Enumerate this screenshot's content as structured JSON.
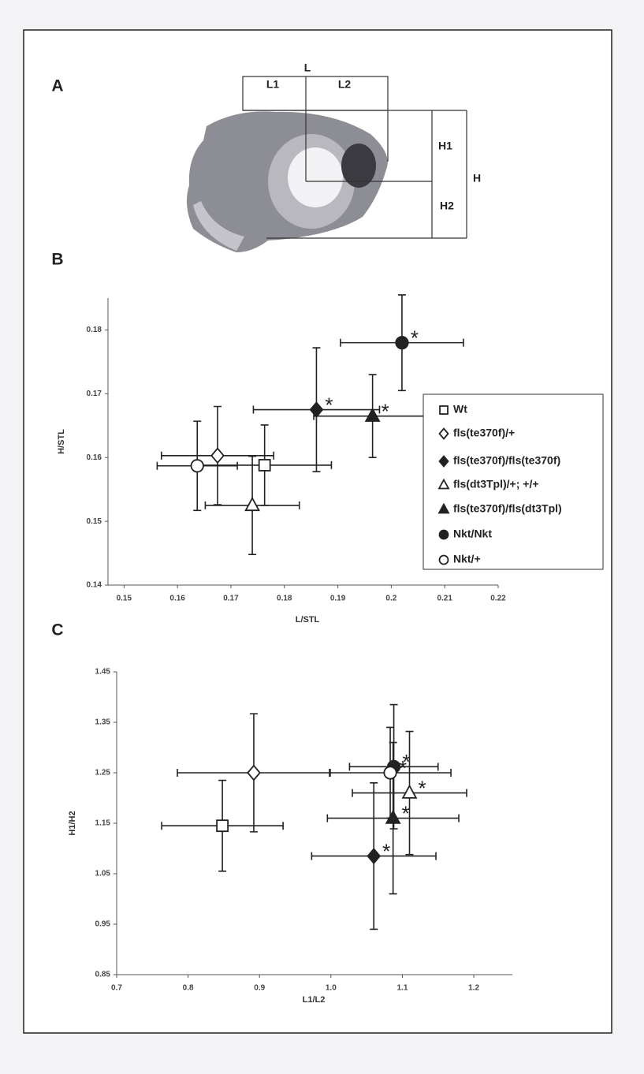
{
  "panel_a": {
    "label": "A",
    "L": "L",
    "L1": "L1",
    "L2": "L2",
    "H": "H",
    "H1": "H1",
    "H2": "H2"
  },
  "chart_data": [
    {
      "type": "scatter",
      "panel": "B",
      "xlabel": "L/STL",
      "ylabel": "H/STL",
      "xlim": [
        0.147,
        0.22
      ],
      "ylim": [
        0.14,
        0.185
      ],
      "xticks": [
        0.15,
        0.16,
        0.17,
        0.18,
        0.19,
        0.2,
        {
          "value": 0.21,
          "label": "0.21"
        },
        0.22
      ],
      "yticks": [
        0.14,
        0.15,
        0.16,
        0.17,
        0.18
      ],
      "legend": "right",
      "series": [
        {
          "name": "Wt",
          "marker": "square",
          "filled": false,
          "x": [
            0.1763
          ],
          "values": [
            0.1588
          ],
          "xerr": [
            0.0125
          ],
          "yerr": [
            0.0063
          ]
        },
        {
          "name": "fls(te370f)/+",
          "marker": "diamond",
          "filled": false,
          "x": [
            0.1675
          ],
          "values": [
            0.1603
          ],
          "xerr": [
            0.0105
          ],
          "yerr": [
            0.0077
          ]
        },
        {
          "name": "fls(te370f)/fls(te370f)",
          "marker": "diamond",
          "filled": true,
          "x": [
            0.186
          ],
          "values": [
            0.1675
          ],
          "xerr": [
            0.0118
          ],
          "yerr": [
            0.0097
          ],
          "annotation": "*"
        },
        {
          "name": "fls(dt3Tpl)/+; +/+",
          "marker": "triangle",
          "filled": false,
          "x": [
            0.174
          ],
          "values": [
            0.1525
          ],
          "xerr": [
            0.0088
          ],
          "yerr": [
            0.0077
          ]
        },
        {
          "name": "fls(te370f)/fls(dt3Tpl)",
          "marker": "triangle",
          "filled": true,
          "x": [
            0.1965
          ],
          "values": [
            0.1665
          ],
          "xerr": [
            0.011
          ],
          "yerr": [
            0.0065
          ],
          "annotation": "*"
        },
        {
          "name": "Nkt/Nkt",
          "marker": "circle",
          "filled": true,
          "x": [
            0.202
          ],
          "values": [
            0.178
          ],
          "xerr": [
            0.0115
          ],
          "yerr": [
            0.0075
          ],
          "annotation": "*"
        },
        {
          "name": "Nkt/+",
          "marker": "circle",
          "filled": false,
          "x": [
            0.1637
          ],
          "values": [
            0.1587
          ],
          "xerr": [
            0.0075
          ],
          "yerr": [
            0.007
          ]
        }
      ]
    },
    {
      "type": "scatter",
      "panel": "C",
      "xlabel": "L1/L2",
      "ylabel": "H1/H2",
      "xlim": [
        0.7,
        1.254
      ],
      "ylim": [
        0.85,
        1.45
      ],
      "xticks": [
        0.7,
        0.8,
        0.9,
        {
          "value": 1,
          "label": "1.0"
        },
        1.1,
        1.2
      ],
      "yticks": [
        0.85,
        0.95,
        1.05,
        1.15,
        1.25,
        1.35,
        1.45
      ],
      "series": [
        {
          "marker": "square",
          "filled": false,
          "x": [
            0.848
          ],
          "values": [
            1.145
          ],
          "xerr": [
            0.085
          ],
          "yerr": [
            0.09
          ]
        },
        {
          "marker": "diamond",
          "filled": false,
          "x": [
            0.892
          ],
          "values": [
            1.25
          ],
          "xerr": [
            0.107
          ],
          "yerr": [
            0.117
          ]
        },
        {
          "marker": "diamond",
          "filled": true,
          "x": [
            1.06
          ],
          "values": [
            1.085
          ],
          "xerr": [
            0.087
          ],
          "yerr": [
            0.145
          ],
          "annotation": "*"
        },
        {
          "marker": "triangle",
          "filled": false,
          "x": [
            1.11
          ],
          "values": [
            1.21
          ],
          "xerr": [
            0.08
          ],
          "yerr": [
            0.122
          ],
          "annotation": "*"
        },
        {
          "marker": "triangle",
          "filled": true,
          "x": [
            1.087
          ],
          "values": [
            1.16
          ],
          "xerr": [
            0.092
          ],
          "yerr": [
            0.15
          ],
          "annotation": "*"
        },
        {
          "marker": "circle",
          "filled": true,
          "x": [
            1.088
          ],
          "values": [
            1.262
          ],
          "xerr": [
            0.062
          ],
          "yerr": [
            0.123
          ],
          "annotation": "*"
        },
        {
          "marker": "circle",
          "filled": false,
          "x": [
            1.083
          ],
          "values": [
            1.25
          ],
          "xerr": [
            0.085
          ],
          "yerr": [
            0.09
          ],
          "annotation": "*"
        }
      ]
    }
  ]
}
